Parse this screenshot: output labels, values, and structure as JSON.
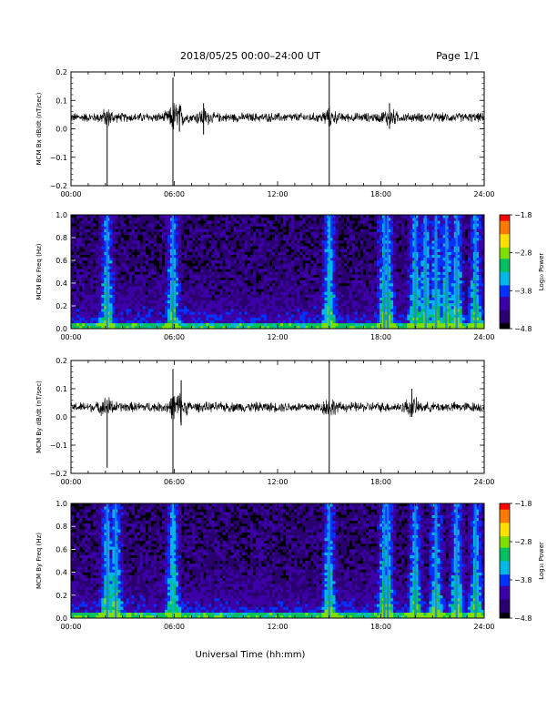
{
  "header": {
    "date_range": "2018/05/25  00:00–24:00 UT",
    "page": "Page 1/1"
  },
  "chart_data": [
    {
      "type": "line",
      "ylabel": "MCM Bx dB/dt (nT/sec)",
      "xlim": [
        0,
        24
      ],
      "ylim": [
        -0.2,
        0.2
      ],
      "x_ticks": [
        "00:00",
        "06:00",
        "12:00",
        "18:00",
        "24:00"
      ],
      "y_ticks": [
        -0.2,
        -0.1,
        0.0,
        0.1,
        0.2
      ],
      "y_tick_labels": [
        "−0.2",
        "−0.1",
        "0.0",
        "0.1",
        "0.2"
      ],
      "baseline": 0.04,
      "noise_amplitude": 0.012,
      "events": [
        {
          "t": 2.1,
          "min": -0.2,
          "max": 0.06
        },
        {
          "t": 5.92,
          "min": -0.2,
          "max": 0.18
        },
        {
          "t": 6.3,
          "min": -0.01,
          "max": 0.08
        },
        {
          "t": 7.7,
          "min": -0.02,
          "max": 0.09
        },
        {
          "t": 15.0,
          "min": -0.2,
          "max": 0.2
        },
        {
          "t": 18.5,
          "min": 0.0,
          "max": 0.09
        }
      ]
    },
    {
      "type": "heatmap",
      "ylabel": "MCM Bx Freq (Hz)",
      "xlim": [
        0,
        24
      ],
      "ylim": [
        0.0,
        1.0
      ],
      "x_ticks": [
        "00:00",
        "06:00",
        "12:00",
        "18:00",
        "24:00"
      ],
      "y_ticks": [
        "0.0",
        "0.2",
        "0.4",
        "0.6",
        "0.8",
        "1.0"
      ],
      "colorbar": {
        "label": "Log₁₀ Power",
        "range": [
          -4.8,
          -1.8
        ],
        "ticks": [
          "−1.8",
          "−2.8",
          "−3.8",
          "−4.8"
        ]
      },
      "bright_times": [
        2.1,
        5.92,
        15.0,
        18.2,
        18.4,
        20.0,
        20.6,
        21.2,
        21.8,
        22.4,
        23.5
      ],
      "colors": [
        "#000000",
        "#2a0070",
        "#3d00a8",
        "#0033ff",
        "#00b7e8",
        "#00c060",
        "#7fe000",
        "#ffe000",
        "#ff7a00",
        "#ff0000"
      ]
    },
    {
      "type": "line",
      "ylabel": "MCM By dB/dt (nT/sec)",
      "xlim": [
        0,
        24
      ],
      "ylim": [
        -0.2,
        0.2
      ],
      "x_ticks": [
        "00:00",
        "06:00",
        "12:00",
        "18:00",
        "24:00"
      ],
      "y_ticks": [
        -0.2,
        -0.1,
        0.0,
        0.1,
        0.2
      ],
      "y_tick_labels": [
        "−0.2",
        "−0.1",
        "0.0",
        "0.1",
        "0.2"
      ],
      "baseline": 0.035,
      "noise_amplitude": 0.013,
      "events": [
        {
          "t": 2.1,
          "min": -0.18,
          "max": 0.06
        },
        {
          "t": 5.92,
          "min": -0.2,
          "max": 0.17
        },
        {
          "t": 6.4,
          "min": -0.03,
          "max": 0.13
        },
        {
          "t": 15.0,
          "min": -0.2,
          "max": 0.2
        },
        {
          "t": 19.8,
          "min": 0.0,
          "max": 0.1
        }
      ]
    },
    {
      "type": "heatmap",
      "ylabel": "MCM By Freq (Hz)",
      "xlim": [
        0,
        24
      ],
      "ylim": [
        0.0,
        1.0
      ],
      "x_ticks": [
        "00:00",
        "06:00",
        "12:00",
        "18:00",
        "24:00"
      ],
      "y_ticks": [
        "0.0",
        "0.2",
        "0.4",
        "0.6",
        "0.8",
        "1.0"
      ],
      "colorbar": {
        "label": "Log₁₀ Power",
        "range": [
          -4.8,
          -1.8
        ],
        "ticks": [
          "−1.8",
          "−2.8",
          "−3.8",
          "−4.8"
        ]
      },
      "bright_times": [
        2.1,
        2.6,
        5.92,
        15.0,
        18.2,
        18.4,
        20.0,
        21.2,
        22.4,
        23.5
      ],
      "colors": [
        "#000000",
        "#2a0070",
        "#3d00a8",
        "#0033ff",
        "#00b7e8",
        "#00c060",
        "#7fe000",
        "#ffe000",
        "#ff7a00",
        "#ff0000"
      ]
    }
  ],
  "xaxis_title": "Universal Time (hh:mm)"
}
